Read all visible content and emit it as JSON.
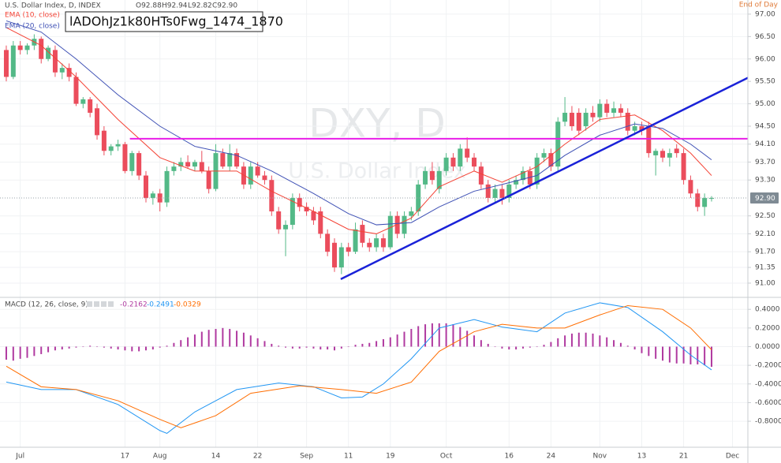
{
  "header": {
    "symbol": "U.S. Dollar Index, D, INDEX",
    "ohlc": [
      "O92.88",
      "H92.94",
      "L92.82",
      "C92.90"
    ],
    "session": "End of Day",
    "label_box": "lADOhJz1k80HTs0Fwg_1474_1870",
    "watermark": "DXY, D",
    "watermark_sub": "U.S. Dollar Index"
  },
  "chart_data": [
    {
      "type": "candlestick",
      "up_color": "#53b987",
      "down_color": "#eb4d5c",
      "grid": true,
      "xlim": [
        -0.9,
        106.2
      ],
      "ylim": [
        90.7,
        97.28
      ],
      "yticks": [
        {
          "value": 97,
          "label": "97.00"
        },
        {
          "value": 96.5,
          "label": "96.50"
        },
        {
          "value": 96,
          "label": "96.00"
        },
        {
          "value": 95.5,
          "label": "95.50"
        },
        {
          "value": 95,
          "label": "95.00"
        },
        {
          "value": 94.5,
          "label": "94.50"
        },
        {
          "value": 94.1,
          "label": "94.10"
        },
        {
          "value": 93.7,
          "label": "93.70"
        },
        {
          "value": 93.3,
          "label": "93.30"
        },
        {
          "value": 92.5,
          "label": "92.50"
        },
        {
          "value": 92.1,
          "label": "92.10"
        },
        {
          "value": 91.7,
          "label": "91.70"
        },
        {
          "value": 91.35,
          "label": "91.35"
        },
        {
          "value": 91,
          "label": "91.00"
        }
      ],
      "last_price": {
        "value": 92.9,
        "label": "92.90"
      },
      "ohlc": [
        [
          96.2,
          96.3,
          95.5,
          95.6
        ],
        [
          95.6,
          96.4,
          95.55,
          96.3
        ],
        [
          96.3,
          96.4,
          96.1,
          96.2
        ],
        [
          96.2,
          96.35,
          96.1,
          96.3
        ],
        [
          96.3,
          96.55,
          96.2,
          96.45
        ],
        [
          96.45,
          96.5,
          95.9,
          96.0
        ],
        [
          96.0,
          96.3,
          95.95,
          96.25
        ],
        [
          96.2,
          96.3,
          95.6,
          95.7
        ],
        [
          95.7,
          95.9,
          95.55,
          95.8
        ],
        [
          95.8,
          95.9,
          95.5,
          95.6
        ],
        [
          95.6,
          95.7,
          94.95,
          95.0
        ],
        [
          95.0,
          95.15,
          94.9,
          95.1
        ],
        [
          95.1,
          95.15,
          94.7,
          94.8
        ],
        [
          94.9,
          95.0,
          94.2,
          94.3
        ],
        [
          94.4,
          94.5,
          93.85,
          93.95
        ],
        [
          93.95,
          94.1,
          93.85,
          94.05
        ],
        [
          94.05,
          94.2,
          93.95,
          94.1
        ],
        [
          94.1,
          94.15,
          93.45,
          93.5
        ],
        [
          93.5,
          93.95,
          93.4,
          93.9
        ],
        [
          93.9,
          93.95,
          93.3,
          93.4
        ],
        [
          93.4,
          93.5,
          92.8,
          92.9
        ],
        [
          92.9,
          93.05,
          92.75,
          93.0
        ],
        [
          93.0,
          93.1,
          92.6,
          92.8
        ],
        [
          92.8,
          93.6,
          92.7,
          93.5
        ],
        [
          93.5,
          93.7,
          93.4,
          93.6
        ],
        [
          93.6,
          93.8,
          93.5,
          93.7
        ],
        [
          93.7,
          93.85,
          93.55,
          93.6
        ],
        [
          93.6,
          93.75,
          93.5,
          93.7
        ],
        [
          93.7,
          93.95,
          93.45,
          93.5
        ],
        [
          93.5,
          93.6,
          93.0,
          93.1
        ],
        [
          93.1,
          94.1,
          93.05,
          93.9
        ],
        [
          93.9,
          94.0,
          93.55,
          93.6
        ],
        [
          93.6,
          94.1,
          93.5,
          93.9
        ],
        [
          93.9,
          94.0,
          93.55,
          93.6
        ],
        [
          93.6,
          93.7,
          93.1,
          93.2
        ],
        [
          93.2,
          93.7,
          93.1,
          93.6
        ],
        [
          93.6,
          93.7,
          93.35,
          93.4
        ],
        [
          93.4,
          93.5,
          93.2,
          93.3
        ],
        [
          93.3,
          93.4,
          92.5,
          92.6
        ],
        [
          92.6,
          92.7,
          92.1,
          92.2
        ],
        [
          92.2,
          92.4,
          91.6,
          92.3
        ],
        [
          92.3,
          93.0,
          92.2,
          92.9
        ],
        [
          92.9,
          93.0,
          92.6,
          92.7
        ],
        [
          92.7,
          92.8,
          92.5,
          92.6
        ],
        [
          92.6,
          92.7,
          92.3,
          92.4
        ],
        [
          92.6,
          92.7,
          92.0,
          92.1
        ],
        [
          92.1,
          92.2,
          91.6,
          91.7
        ],
        [
          91.9,
          92.0,
          91.25,
          91.35
        ],
        [
          91.35,
          91.9,
          91.2,
          91.8
        ],
        [
          91.8,
          91.9,
          91.6,
          91.7
        ],
        [
          91.7,
          92.35,
          91.65,
          92.2
        ],
        [
          92.3,
          92.4,
          91.8,
          91.9
        ],
        [
          91.9,
          92.0,
          91.7,
          91.8
        ],
        [
          91.8,
          92.1,
          91.7,
          92.0
        ],
        [
          92.0,
          92.1,
          91.7,
          91.8
        ],
        [
          91.8,
          92.6,
          91.75,
          92.5
        ],
        [
          92.5,
          92.6,
          92.0,
          92.1
        ],
        [
          92.1,
          92.6,
          92.0,
          92.5
        ],
        [
          92.5,
          92.7,
          92.4,
          92.6
        ],
        [
          92.6,
          93.3,
          92.5,
          93.2
        ],
        [
          93.2,
          93.6,
          93.1,
          93.5
        ],
        [
          93.5,
          93.7,
          93.2,
          93.3
        ],
        [
          93.1,
          93.6,
          93.0,
          93.5
        ],
        [
          93.5,
          93.9,
          93.4,
          93.8
        ],
        [
          93.8,
          93.9,
          93.5,
          93.6
        ],
        [
          93.6,
          94.1,
          93.5,
          94.0
        ],
        [
          94.0,
          94.25,
          93.7,
          93.8
        ],
        [
          93.8,
          93.9,
          93.5,
          93.6
        ],
        [
          93.6,
          93.7,
          93.1,
          93.2
        ],
        [
          93.2,
          93.3,
          92.8,
          92.9
        ],
        [
          92.9,
          93.2,
          92.8,
          93.1
        ],
        [
          93.1,
          93.2,
          92.75,
          92.9
        ],
        [
          92.9,
          93.3,
          92.8,
          93.2
        ],
        [
          93.2,
          93.4,
          93.1,
          93.3
        ],
        [
          93.3,
          93.6,
          93.2,
          93.5
        ],
        [
          93.5,
          93.6,
          93.1,
          93.2
        ],
        [
          93.2,
          93.9,
          93.1,
          93.8
        ],
        [
          93.8,
          94.0,
          93.7,
          93.9
        ],
        [
          93.9,
          94.0,
          93.5,
          93.6
        ],
        [
          93.6,
          94.7,
          93.5,
          94.6
        ],
        [
          94.6,
          95.15,
          94.5,
          94.8
        ],
        [
          94.8,
          94.95,
          94.4,
          94.5
        ],
        [
          94.8,
          94.9,
          94.3,
          94.4
        ],
        [
          94.5,
          94.9,
          94.4,
          94.8
        ],
        [
          94.8,
          94.95,
          94.6,
          94.7
        ],
        [
          94.7,
          95.1,
          94.6,
          95.0
        ],
        [
          95.0,
          95.1,
          94.7,
          94.8
        ],
        [
          94.8,
          95.05,
          94.7,
          94.9
        ],
        [
          94.9,
          95.0,
          94.7,
          94.8
        ],
        [
          94.8,
          94.9,
          94.3,
          94.4
        ],
        [
          94.4,
          94.6,
          94.3,
          94.5
        ],
        [
          94.5,
          94.6,
          94.3,
          94.4
        ],
        [
          94.5,
          94.6,
          93.8,
          93.9
        ],
        [
          93.85,
          94.0,
          93.4,
          93.95
        ],
        [
          93.95,
          94.0,
          93.7,
          93.8
        ],
        [
          93.8,
          94.0,
          93.6,
          93.9
        ],
        [
          94.0,
          94.1,
          93.8,
          93.9
        ],
        [
          93.9,
          94.0,
          93.2,
          93.3
        ],
        [
          93.3,
          93.4,
          92.9,
          93.0
        ],
        [
          93.0,
          93.1,
          92.6,
          92.7
        ],
        [
          92.7,
          93.0,
          92.5,
          92.9
        ],
        [
          92.88,
          92.94,
          92.82,
          92.9
        ]
      ],
      "lines": [
        {
          "name": "EMA (10, close)",
          "color": "#f44336",
          "x": [
            0,
            5,
            10,
            16,
            22,
            27,
            33,
            38,
            44,
            49,
            53,
            58,
            62,
            67,
            71,
            76,
            80,
            85,
            90,
            94,
            98,
            101
          ],
          "values": [
            96.7,
            96.3,
            95.6,
            94.65,
            93.8,
            93.5,
            93.5,
            93.05,
            92.6,
            92.2,
            92.1,
            92.45,
            93.15,
            93.5,
            93.25,
            93.6,
            94.1,
            94.65,
            94.75,
            94.4,
            93.9,
            93.4
          ]
        },
        {
          "name": "EMA (20, close)",
          "color": "#3f51b5",
          "x": [
            0,
            5,
            10,
            16,
            22,
            27,
            33,
            38,
            44,
            49,
            53,
            58,
            62,
            67,
            71,
            76,
            80,
            85,
            90,
            94,
            98,
            101
          ],
          "values": [
            96.85,
            96.6,
            96.0,
            95.2,
            94.5,
            94.05,
            93.85,
            93.5,
            93.0,
            92.55,
            92.3,
            92.35,
            92.7,
            93.05,
            93.2,
            93.4,
            93.85,
            94.3,
            94.55,
            94.45,
            94.1,
            93.75
          ]
        }
      ],
      "hline": {
        "value": 94.22,
        "color": "#e91ee8",
        "x_start": 17.7
      },
      "trend_line": {
        "x": [
          47.9,
          106.2
        ],
        "values": [
          91.09,
          95.58
        ],
        "color": "#1a22d8"
      }
    },
    {
      "type": "macd",
      "title": "MACD (12, 26, close, 9)",
      "readout": [
        "-0.2162",
        "-0.2491",
        "-0.0329"
      ],
      "grid": true,
      "xlim": [
        -0.9,
        106.2
      ],
      "ylim": [
        -1.07,
        0.52
      ],
      "yticks": [
        {
          "value": 0.4,
          "label": "0.4000"
        },
        {
          "value": 0.2,
          "label": "0.2000"
        },
        {
          "value": 0,
          "label": "0.0000"
        },
        {
          "value": -0.2,
          "label": "-0.2000"
        },
        {
          "value": -0.4,
          "label": "-0.4000"
        },
        {
          "value": -0.6,
          "label": "-0.6000"
        },
        {
          "value": -0.8,
          "label": "-0.8000"
        }
      ],
      "xticks": [
        {
          "value": 2,
          "label": "Jul"
        },
        17,
        {
          "value": 22,
          "label": "Aug"
        },
        {
          "value": 30,
          "label": "14"
        },
        {
          "value": 36,
          "label": "22"
        },
        {
          "value": 43,
          "label": "Sep"
        },
        {
          "value": 49,
          "label": "11"
        },
        {
          "value": 55,
          "label": "19"
        },
        {
          "value": 63,
          "label": "Oct"
        },
        {
          "value": 72,
          "label": "16"
        },
        {
          "value": 78,
          "label": "24"
        },
        {
          "value": 85,
          "label": "Nov"
        },
        {
          "value": 91,
          "label": "13"
        },
        {
          "value": 97,
          "label": "21"
        },
        {
          "value": 104,
          "label": "Dec"
        }
      ],
      "histogram": {
        "color": "#b03aa0",
        "values": [
          -0.14,
          -0.15,
          -0.13,
          -0.12,
          -0.1,
          -0.08,
          -0.06,
          -0.04,
          -0.03,
          -0.02,
          -0.01,
          0,
          0.01,
          0,
          -0.01,
          -0.02,
          -0.03,
          -0.04,
          -0.05,
          -0.05,
          -0.04,
          -0.03,
          -0.01,
          0.01,
          0.04,
          0.07,
          0.1,
          0.13,
          0.16,
          0.18,
          0.19,
          0.2,
          0.19,
          0.17,
          0.15,
          0.12,
          0.09,
          0.06,
          0.03,
          0.01,
          -0.01,
          -0.02,
          -0.02,
          -0.01,
          -0.02,
          -0.03,
          -0.03,
          -0.04,
          -0.02,
          0,
          0.02,
          0.03,
          0.04,
          0.06,
          0.08,
          0.1,
          0.13,
          0.16,
          0.19,
          0.22,
          0.24,
          0.25,
          0.25,
          0.25,
          0.24,
          0.21,
          0.17,
          0.12,
          0.07,
          0.03,
          0,
          -0.02,
          -0.03,
          -0.03,
          -0.02,
          -0.01,
          0,
          0.02,
          0.05,
          0.09,
          0.12,
          0.14,
          0.15,
          0.15,
          0.14,
          0.12,
          0.1,
          0.07,
          0.04,
          0.01,
          -0.03,
          -0.07,
          -0.1,
          -0.13,
          -0.15,
          -0.17,
          -0.18,
          -0.18,
          -0.19,
          -0.19,
          -0.2,
          -0.2162
        ]
      },
      "series": [
        {
          "color": "#2196f3",
          "x": [
            0,
            5,
            10,
            16,
            22,
            23,
            27,
            33,
            39,
            44,
            48,
            51,
            54,
            58,
            62,
            67,
            71,
            76,
            80,
            85,
            89,
            94,
            98,
            101
          ],
          "values": [
            -0.38,
            -0.46,
            -0.46,
            -0.62,
            -0.9,
            -0.93,
            -0.7,
            -0.46,
            -0.39,
            -0.43,
            -0.55,
            -0.54,
            -0.4,
            -0.13,
            0.2,
            0.29,
            0.21,
            0.16,
            0.36,
            0.47,
            0.42,
            0.16,
            -0.09,
            -0.2491
          ]
        },
        {
          "color": "#ff6d00",
          "x": [
            0,
            5,
            10,
            16,
            22,
            25,
            30,
            35,
            42,
            48,
            53,
            58,
            62,
            67,
            71,
            76,
            80,
            85,
            89,
            94,
            98,
            101
          ],
          "values": [
            -0.21,
            -0.43,
            -0.46,
            -0.58,
            -0.78,
            -0.87,
            -0.74,
            -0.5,
            -0.42,
            -0.46,
            -0.5,
            -0.38,
            -0.05,
            0.16,
            0.24,
            0.2,
            0.2,
            0.34,
            0.44,
            0.4,
            0.2,
            -0.0329
          ]
        }
      ]
    }
  ]
}
